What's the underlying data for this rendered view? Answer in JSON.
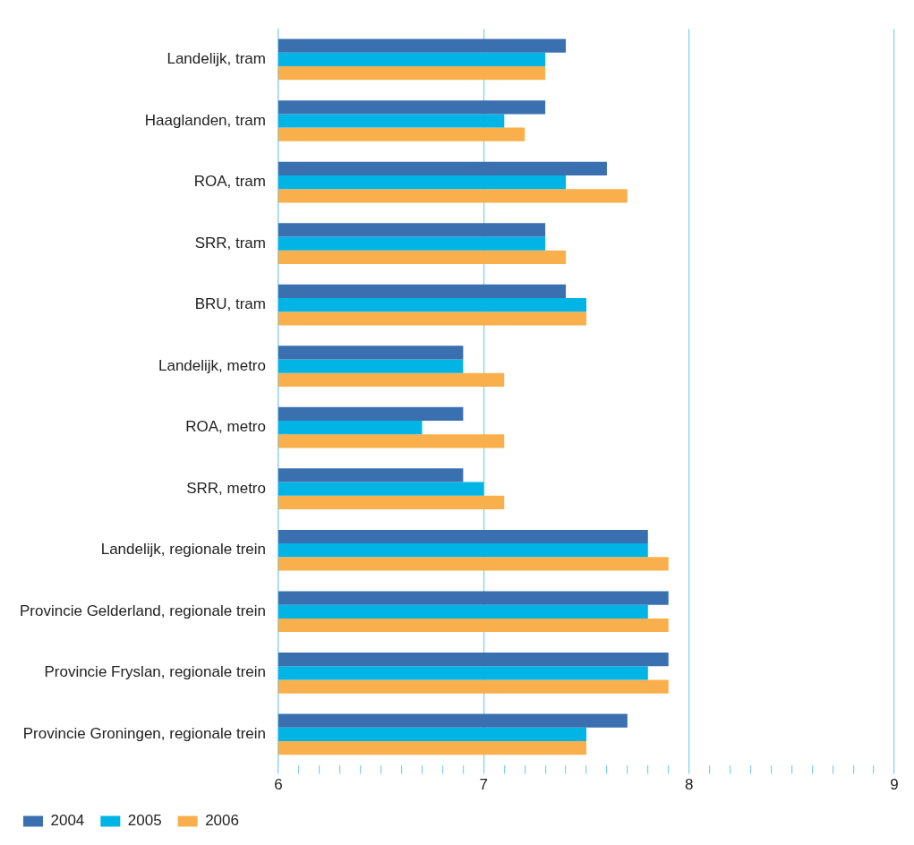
{
  "chart_data": {
    "type": "bar",
    "orientation": "horizontal",
    "categories": [
      "Landelijk, tram",
      "Haaglanden, tram",
      "ROA, tram",
      "SRR, tram",
      "BRU, tram",
      "Landelijk, metro",
      "ROA, metro",
      "SRR, metro",
      "Landelijk, regionale trein",
      "Provincie Gelderland, regionale trein",
      "Provincie Fryslan, regionale trein",
      "Provincie Groningen, regionale trein"
    ],
    "series": [
      {
        "name": "2004",
        "color": "#3a6fb0",
        "values": [
          7.4,
          7.3,
          7.6,
          7.3,
          7.4,
          6.9,
          6.9,
          6.9,
          7.8,
          7.9,
          7.9,
          7.7
        ]
      },
      {
        "name": "2005",
        "color": "#00b4e6",
        "values": [
          7.3,
          7.1,
          7.4,
          7.3,
          7.5,
          6.9,
          6.7,
          7.0,
          7.8,
          7.8,
          7.8,
          7.5
        ]
      },
      {
        "name": "2006",
        "color": "#f9b04c",
        "values": [
          7.3,
          7.2,
          7.7,
          7.4,
          7.5,
          7.1,
          7.1,
          7.1,
          7.9,
          7.9,
          7.9,
          7.5
        ]
      }
    ],
    "xlim": [
      6,
      9
    ],
    "xticks": [
      6,
      {
        "value": 6.1,
        "label": null
      },
      {
        "value": 6.2,
        "label": null
      },
      {
        "value": 6.3,
        "label": null
      },
      {
        "value": 6.4,
        "label": null
      },
      {
        "value": 6.5,
        "label": null
      },
      {
        "value": 6.6,
        "label": null
      },
      {
        "value": 6.7,
        "label": null
      },
      {
        "value": 6.8,
        "label": null
      },
      {
        "value": 6.9,
        "label": null
      },
      7,
      {
        "value": 7.1,
        "label": null
      },
      {
        "value": 7.2,
        "label": null
      },
      {
        "value": 7.3,
        "label": null
      },
      {
        "value": 7.4,
        "label": null
      },
      {
        "value": 7.5,
        "label": null
      },
      {
        "value": 7.6,
        "label": null
      },
      {
        "value": 7.7,
        "label": null
      },
      {
        "value": 7.8,
        "label": null
      },
      {
        "value": 7.9,
        "label": null
      },
      8,
      {
        "value": 8.1,
        "label": null
      },
      {
        "value": 8.2,
        "label": null
      },
      {
        "value": 8.3,
        "label": null
      },
      {
        "value": 8.4,
        "label": null
      },
      {
        "value": 8.5,
        "label": null
      },
      {
        "value": 8.6,
        "label": null
      },
      {
        "value": 8.7,
        "label": null
      },
      {
        "value": 8.8,
        "label": null
      },
      {
        "value": 8.9,
        "label": null
      },
      9
    ],
    "grid": "x",
    "legend": "bottom left"
  }
}
